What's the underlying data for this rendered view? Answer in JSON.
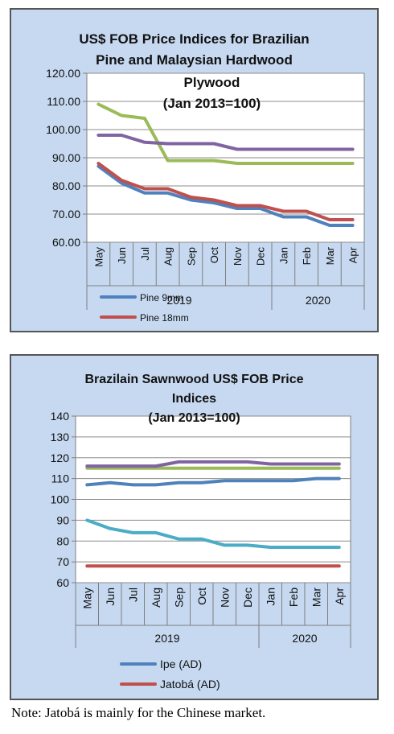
{
  "chart_data": [
    {
      "type": "line",
      "title_lines": [
        "US$ FOB Price Indices for Brazilian",
        "Pine and Malaysian Hardwood",
        "Plywood",
        "(Jan 2013=100)"
      ],
      "categories": [
        "May",
        "Jun",
        "Jul",
        "Aug",
        "Sep",
        "Oct",
        "Nov",
        "Dec",
        "Jan",
        "Feb",
        "Mar",
        "Apr"
      ],
      "year_groups": [
        {
          "label": "2019",
          "span": 8
        },
        {
          "label": "2020",
          "span": 4
        }
      ],
      "y_ticks": [
        "120.00",
        "110.00",
        "100.00",
        "90.00",
        "80.00",
        "70.00",
        "60.00"
      ],
      "ylim": [
        60,
        120
      ],
      "grid": true,
      "legend_position": "bottom-left",
      "series": [
        {
          "name": "Pine 9mm",
          "color": "#4f81bd",
          "values": [
            87,
            81,
            77.5,
            77.5,
            75,
            74,
            72,
            72,
            69,
            69,
            66,
            66
          ]
        },
        {
          "name": "Pine 18mm",
          "color": "#c0504d",
          "values": [
            88,
            82,
            79,
            79,
            76,
            75,
            73,
            73,
            71,
            71,
            68,
            68
          ]
        },
        {
          "name": "",
          "color": "#9bbb59",
          "values": [
            109,
            105,
            104,
            89,
            89,
            89,
            88,
            88,
            88,
            88,
            88,
            88
          ]
        },
        {
          "name": "",
          "color": "#8064a2",
          "values": [
            98,
            98,
            95.5,
            95,
            95,
            95,
            93,
            93,
            93,
            93,
            93,
            93
          ]
        }
      ]
    },
    {
      "type": "line",
      "title_lines": [
        "Brazilain Sawnwood US$ FOB Price",
        "Indices",
        "(Jan 2013=100)"
      ],
      "categories": [
        "May",
        "Jun",
        "Jul",
        "Aug",
        "Sep",
        "Oct",
        "Nov",
        "Dec",
        "Jan",
        "Feb",
        "Mar",
        "Apr"
      ],
      "year_groups": [
        {
          "label": "2019",
          "span": 8
        },
        {
          "label": "2020",
          "span": 4
        }
      ],
      "y_ticks": [
        "140",
        "130",
        "120",
        "110",
        "100",
        "90",
        "80",
        "70",
        "60"
      ],
      "ylim": [
        60,
        140
      ],
      "grid": true,
      "legend_position": "bottom-left",
      "series": [
        {
          "name": "Ipe (AD)",
          "color": "#4f81bd",
          "values": [
            107,
            108,
            107,
            107,
            108,
            108,
            109,
            109,
            109,
            109,
            110,
            110
          ]
        },
        {
          "name": "Jatobá (AD)",
          "color": "#c0504d",
          "values": [
            68,
            68,
            68,
            68,
            68,
            68,
            68,
            68,
            68,
            68,
            68,
            68
          ]
        },
        {
          "name": "",
          "color": "#9bbb59",
          "values": [
            115,
            115,
            115,
            115,
            115,
            115,
            115,
            115,
            115,
            115,
            115,
            115
          ]
        },
        {
          "name": "",
          "color": "#8064a2",
          "values": [
            116,
            116,
            116,
            116,
            118,
            118,
            118,
            118,
            117,
            117,
            117,
            117
          ]
        },
        {
          "name": "",
          "color": "#4bacc6",
          "values": [
            90,
            86,
            84,
            84,
            81,
            81,
            78,
            78,
            77,
            77,
            77,
            77
          ]
        }
      ]
    }
  ],
  "footnote": "Note: Jatobá is mainly for the Chinese market."
}
